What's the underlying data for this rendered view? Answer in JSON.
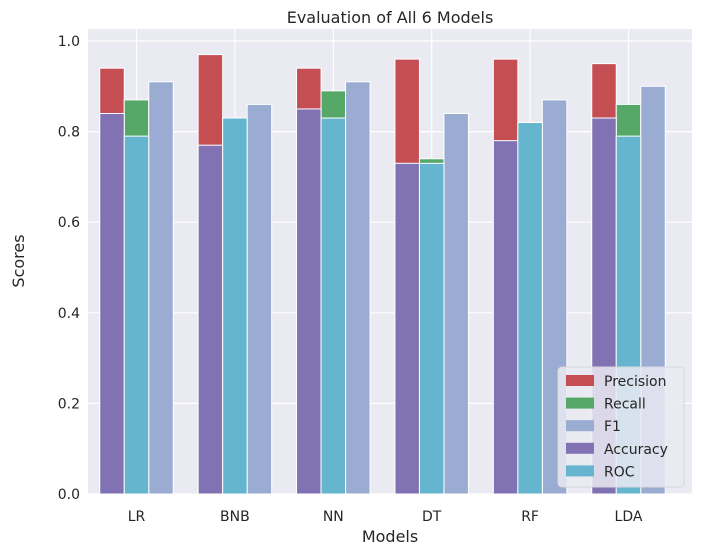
{
  "chart_data": {
    "type": "bar",
    "title": "Evaluation of All 6 Models",
    "xlabel": "Models",
    "ylabel": "Scores",
    "ylim": [
      0,
      1.0
    ],
    "yticks": [
      0.0,
      0.2,
      0.4,
      0.6,
      0.8,
      1.0
    ],
    "ytick_labels": [
      "0.0",
      "0.2",
      "0.4",
      "0.6",
      "0.8",
      "1.0"
    ],
    "grid": true,
    "legend_placement": "lower-right",
    "categories": [
      "LR",
      "BNB",
      "NN",
      "DT",
      "RF",
      "LDA"
    ],
    "series": [
      {
        "name": "Precision",
        "values": [
          0.94,
          0.97,
          0.94,
          0.96,
          0.96,
          0.95
        ],
        "color": "#c44e52",
        "slot": 0
      },
      {
        "name": "Recall",
        "values": [
          0.87,
          0.83,
          0.89,
          0.74,
          0.82,
          0.86
        ],
        "color": "#55a868",
        "slot": 1
      },
      {
        "name": "F1",
        "values": [
          0.91,
          0.86,
          0.91,
          0.84,
          0.87,
          0.9
        ],
        "color": "#9aacd2",
        "slot": 2
      },
      {
        "name": "Accuracy",
        "values": [
          0.84,
          0.77,
          0.85,
          0.73,
          0.78,
          0.83
        ],
        "color": "#8172b3",
        "slot": 0
      },
      {
        "name": "ROC",
        "values": [
          0.79,
          0.83,
          0.83,
          0.73,
          0.82,
          0.79
        ],
        "color": "#64b5cd",
        "slot": 1
      }
    ],
    "colors": {
      "plot_background": "#eaeaf2",
      "grid": "#ffffff"
    }
  }
}
